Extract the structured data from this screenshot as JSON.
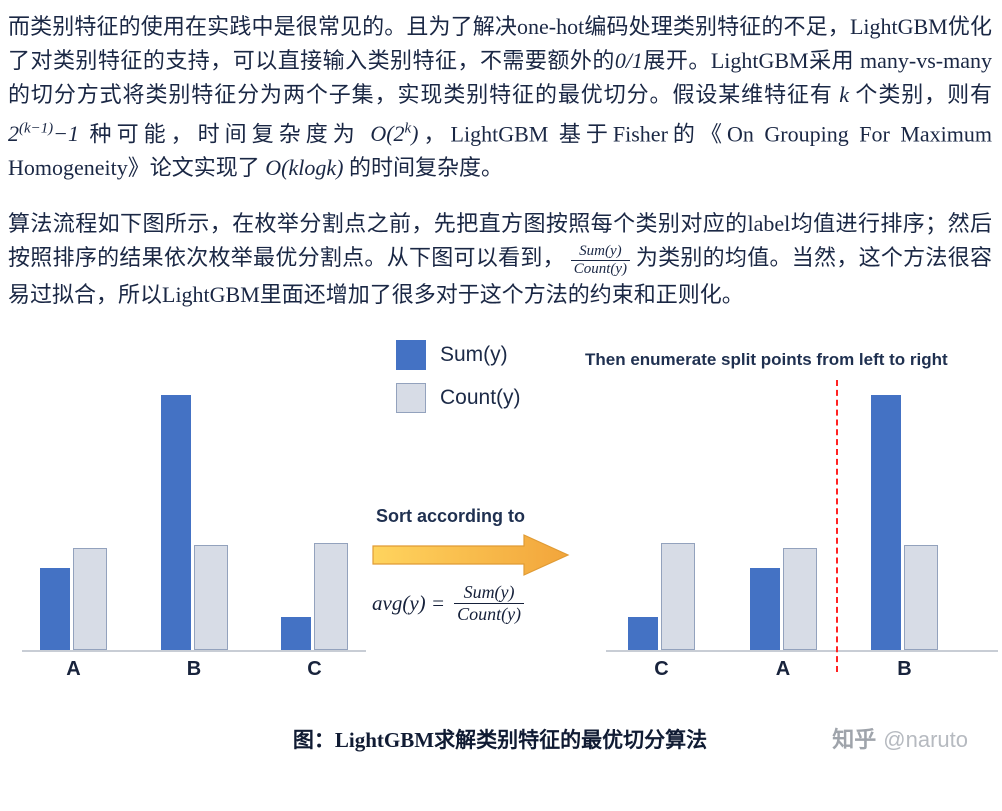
{
  "paragraphs": {
    "p1": {
      "s1": "而类别特征的使用在实践中是很常见的。且为了解决one-hot编码处理类别特征的不足，LightGBM优化了对类别特征的支持，可以直接输入类别特征，不需要额外的",
      "m1": "0/1",
      "s2": "展开。LightGBM采用 many-vs-many 的切分方式将类别特征分为两个子集，实现类别特征的最优切分。假设某维特征有 ",
      "m2": "k",
      "s3": " 个类别，则有 ",
      "m3_base": "2",
      "m3_sup": "(k−1)",
      "m3_tail": "−1",
      "s4": " 种可能，时间复杂度为 ",
      "m4_pre": "O(2",
      "m4_sup": "k",
      "m4_post": ")",
      "s5": "，LightGBM 基于Fisher的《On Grouping For Maximum Homogeneity》论文实现了 ",
      "m5": "O(klogk)",
      "s6": " 的时间复杂度。"
    },
    "p2": {
      "s1": "算法流程如下图所示，在枚举分割点之前，先把直方图按照每个类别对应的label均值进行排序；然后按照排序的结果依次枚举最优分割点。从下图可以看到， ",
      "frac_num": "Sum(y)",
      "frac_den": "Count(y)",
      "s2": " 为类别的均值。当然，这个方法很容易过拟合，所以LightGBM里面还增加了很多对于这个方法的约束和正则化。"
    }
  },
  "figure": {
    "enumerate_text": "Then enumerate split points from left to right",
    "sort_text": "Sort according to",
    "formula_lhs": "avg(y) =",
    "formula_num": "Sum(y)",
    "formula_den": "Count(y)",
    "arrow": {
      "color_from": "#ffd45e",
      "color_to": "#f2a53b",
      "outline": "#e09b35"
    },
    "caption": "图：LightGBM求解类别特征的最优切分算法"
  },
  "watermark": {
    "brand": "知乎",
    "handle": "@naruto"
  },
  "chart_data": [
    {
      "type": "bar",
      "name": "histogram-before-sort",
      "categories": [
        "A",
        "B",
        "C"
      ],
      "series": [
        {
          "name": "Sum(y)",
          "color": "#4472c4",
          "values": [
            3.2,
            10,
            1.3
          ]
        },
        {
          "name": "Count(y)",
          "color": "#d7dce6",
          "border": "#93a2bd",
          "values": [
            4.0,
            4.1,
            4.2
          ]
        }
      ],
      "ylim": [
        0,
        10.5
      ],
      "grid": false,
      "legend_position": "top-center-shared"
    },
    {
      "type": "bar",
      "name": "histogram-after-sort",
      "categories": [
        "C",
        "A",
        "B"
      ],
      "series": [
        {
          "name": "Sum(y)",
          "color": "#4472c4",
          "values": [
            1.3,
            3.2,
            10
          ]
        },
        {
          "name": "Count(y)",
          "color": "#d7dce6",
          "border": "#93a2bd",
          "values": [
            4.2,
            4.0,
            4.1
          ]
        }
      ],
      "ylim": [
        0,
        10.5
      ],
      "grid": false,
      "split_line": {
        "color": "#ff2222",
        "style": "dashed",
        "between": [
          "A",
          "B"
        ]
      }
    }
  ]
}
